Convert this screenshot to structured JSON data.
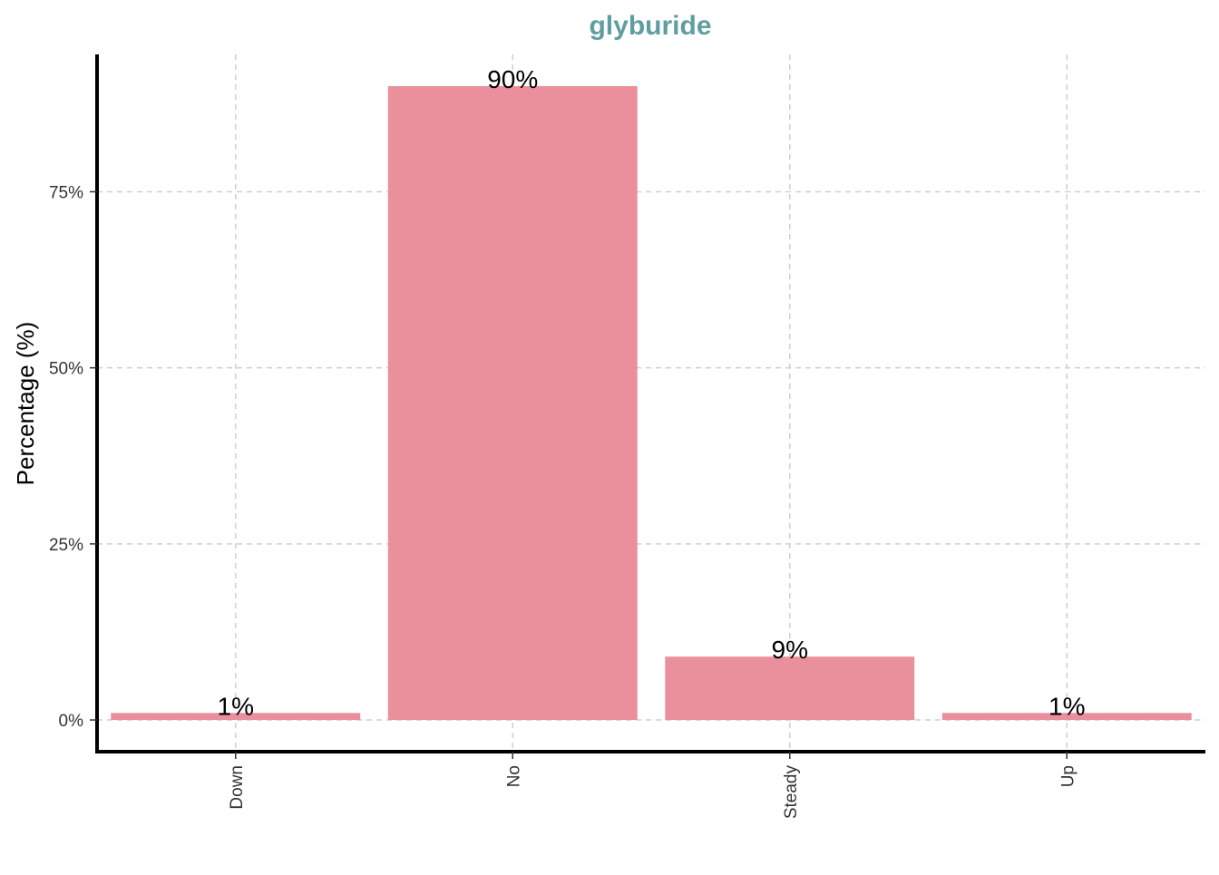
{
  "chart_data": {
    "type": "bar",
    "title": "glyburide",
    "xlabel": "",
    "ylabel": "Percentage (%)",
    "categories": [
      "Down",
      "No",
      "Steady",
      "Up"
    ],
    "values": [
      1,
      90,
      9,
      1
    ],
    "data_labels": [
      "1%",
      "90%",
      "9%",
      "1%"
    ],
    "ylim": [
      -4.5,
      94.5
    ],
    "yticks": [
      0,
      25,
      50,
      75
    ],
    "ytick_labels": [
      "0%",
      "25%",
      "50%",
      "75%"
    ],
    "grid": true,
    "legend": "none",
    "colors": {
      "bar": "#EA909D",
      "title": "#5F9EA0",
      "grid": "#CFCFCF",
      "axis": "#000000"
    }
  }
}
